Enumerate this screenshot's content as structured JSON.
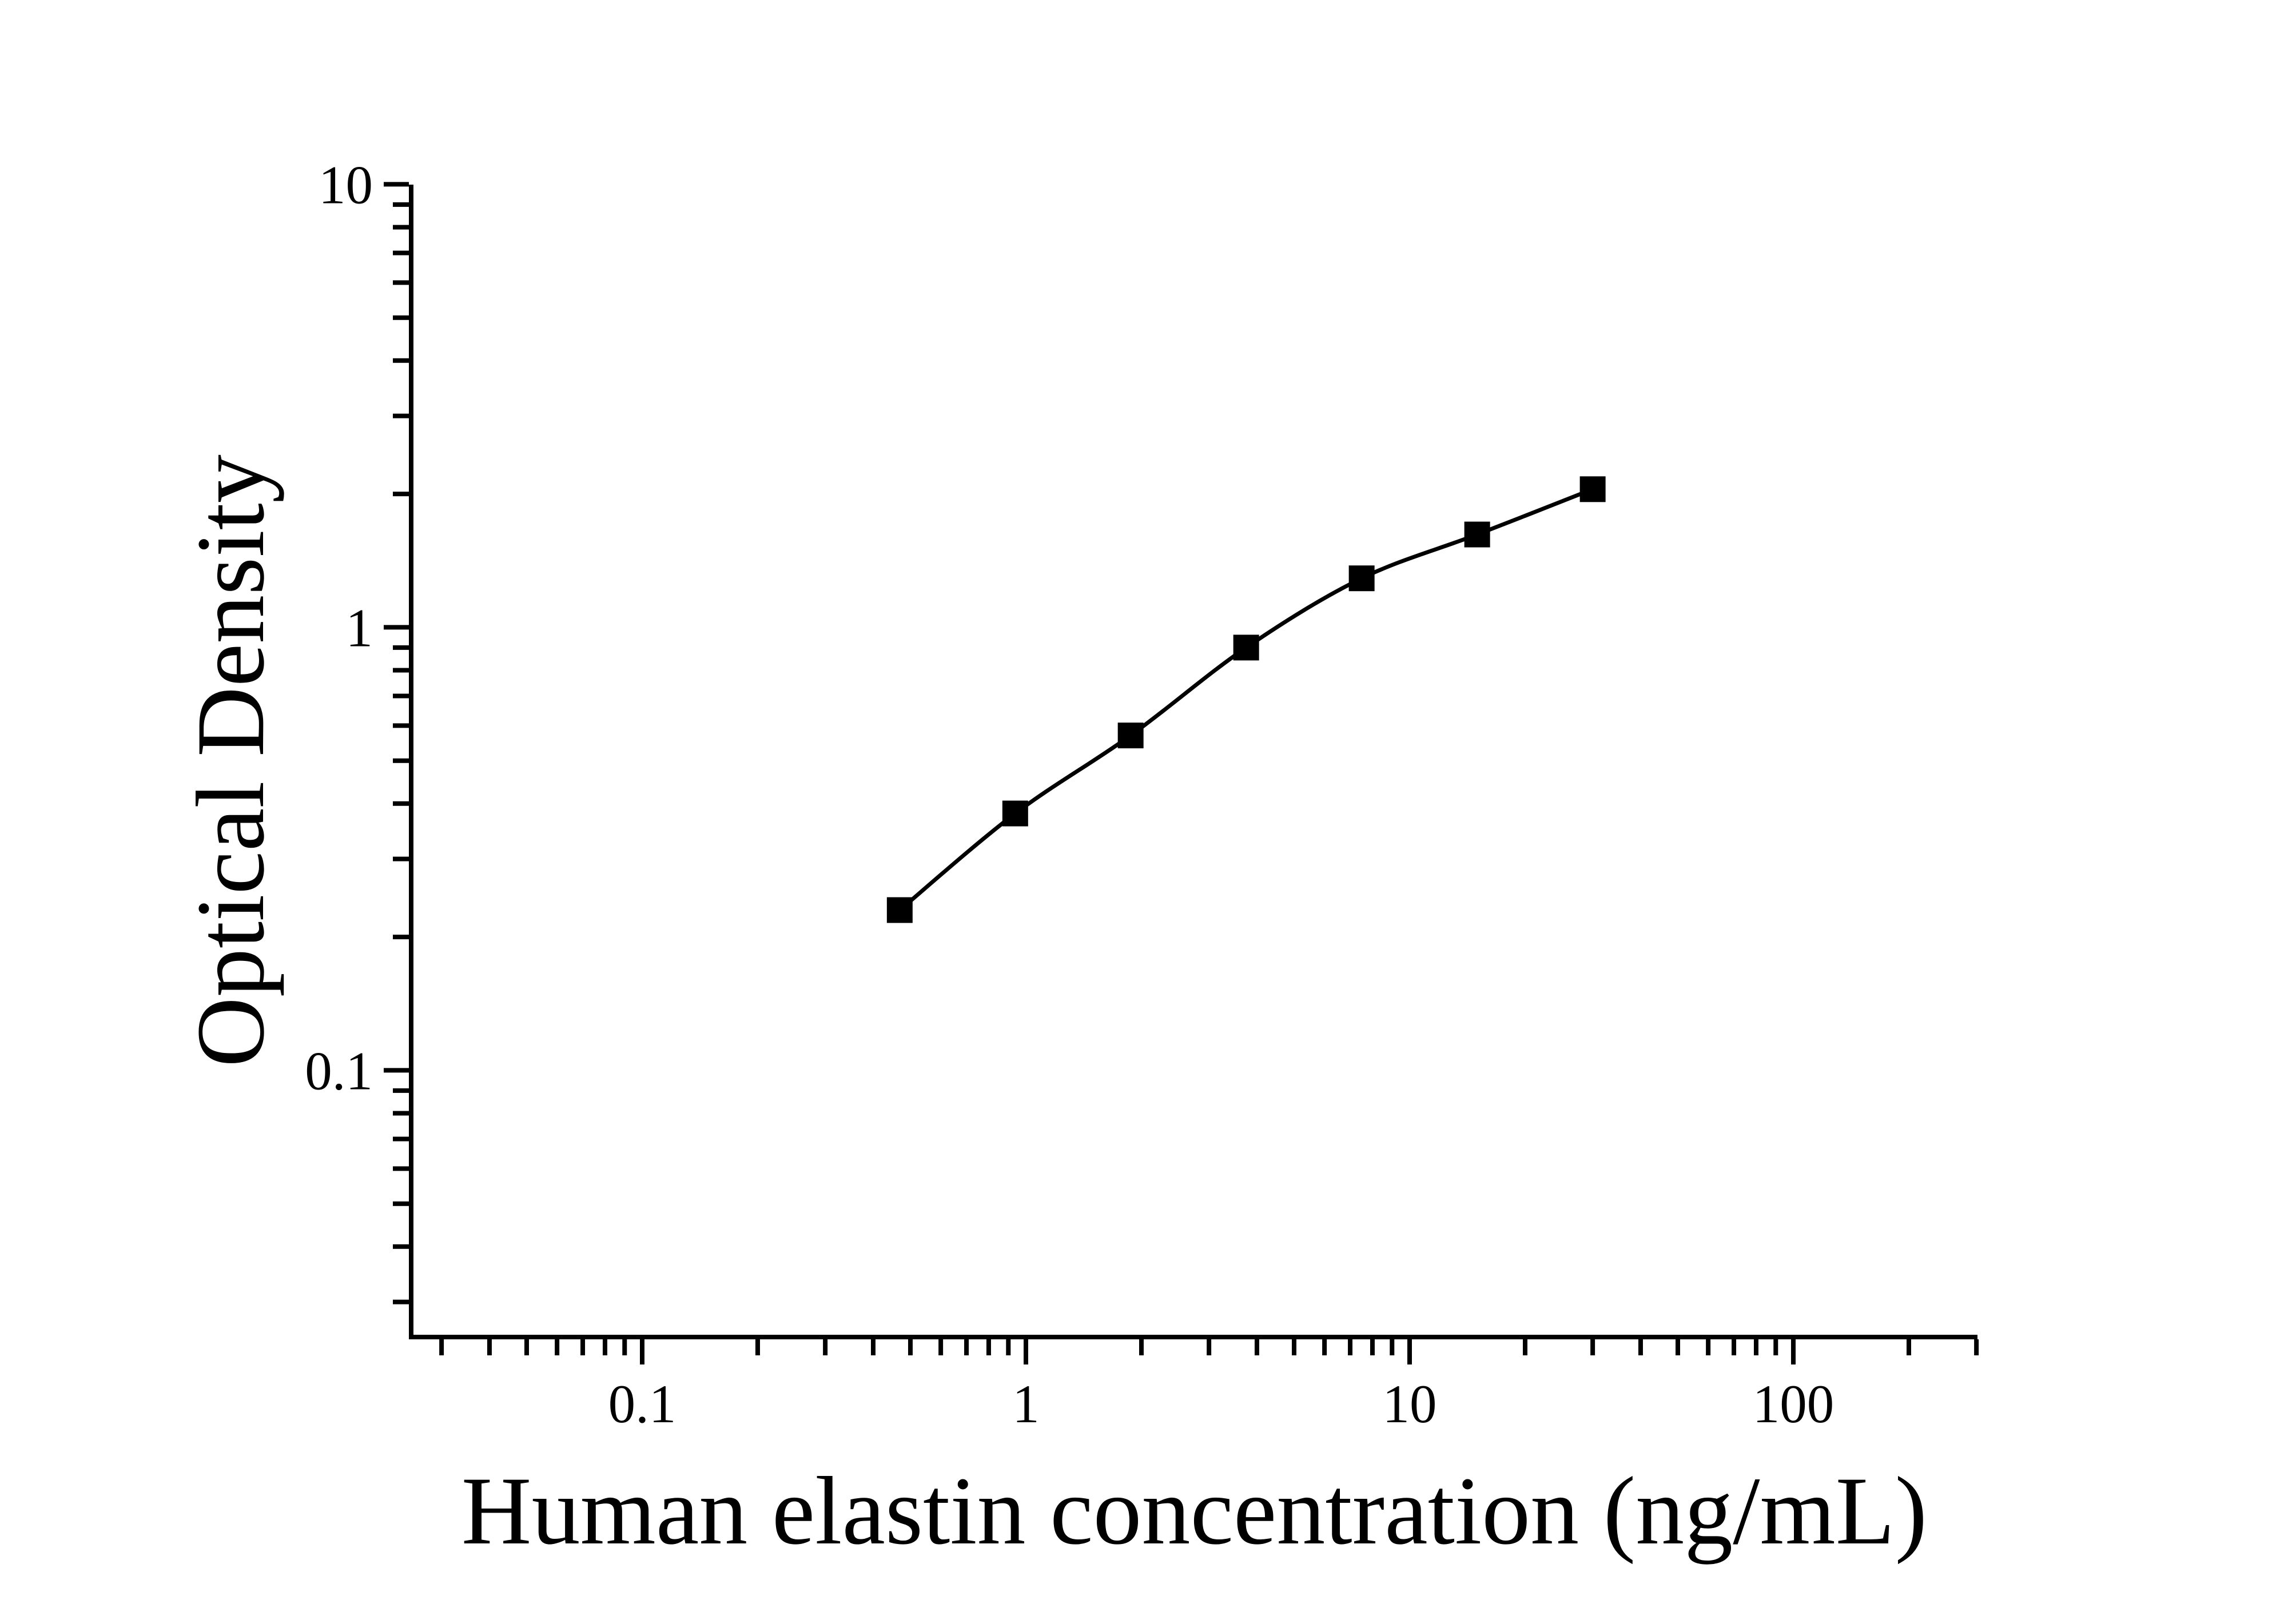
{
  "figure": {
    "background": "#ffffff",
    "ink": "#000000"
  },
  "chart_data": {
    "type": "line",
    "title": "",
    "xlabel": "Human elastin concentration (ng/mL)",
    "ylabel": "Optical Density",
    "x_scale": "log",
    "y_scale": "log",
    "xlim": [
      0.025,
      302
    ],
    "ylim": [
      0.025,
      10
    ],
    "grid": false,
    "legend": "none",
    "x_major_ticks": [
      0.1,
      1,
      10,
      100
    ],
    "x_major_tick_labels": [
      "0.1",
      "1",
      "10",
      "100"
    ],
    "y_major_ticks": [
      10,
      1,
      0.1
    ],
    "y_major_tick_labels": [
      "10",
      "1",
      "0.1"
    ],
    "series": [
      {
        "name": "human-elastin-standard-curve",
        "marker": "filled-square",
        "line": "smooth",
        "color": "#000000",
        "x": [
          0.469,
          0.938,
          1.875,
          3.75,
          7.5,
          15,
          30
        ],
        "y": [
          0.23,
          0.38,
          0.57,
          0.9,
          1.29,
          1.62,
          2.05
        ]
      }
    ]
  }
}
